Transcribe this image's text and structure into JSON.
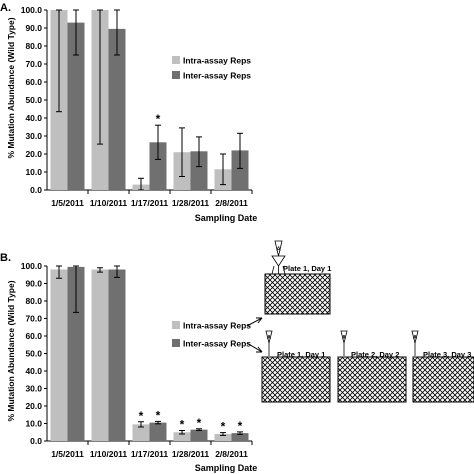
{
  "chart_data": [
    {
      "type": "bar",
      "panel": "A.",
      "categories": [
        "1/5/2011",
        "1/10/2011",
        "1/17/2011",
        "1/28/2011",
        "2/8/2011"
      ],
      "series": [
        {
          "name": "Intra-assay Reps",
          "color": "#bfbfbf",
          "values": [
            100.0,
            100.0,
            3.0,
            21.0,
            11.5
          ],
          "err_low": [
            43.5,
            25.5,
            0.0,
            7.5,
            3.0
          ],
          "err_high": [
            100.0,
            100.0,
            6.5,
            34.5,
            20.0
          ],
          "stars": [
            false,
            false,
            false,
            false,
            false
          ]
        },
        {
          "name": "Inter-assay Reps",
          "color": "#707070",
          "values": [
            93.0,
            89.5,
            26.5,
            21.5,
            22.0
          ],
          "err_low": [
            75.0,
            75.0,
            17.0,
            13.0,
            12.0
          ],
          "err_high": [
            100.0,
            100.0,
            36.0,
            29.5,
            31.5
          ],
          "stars": [
            false,
            false,
            true,
            false,
            false
          ]
        }
      ],
      "xlabel": "Sampling Date",
      "ylabel": "% Mutation Abundance  (Wild Type)",
      "ylim": [
        0,
        100
      ],
      "yticks": [
        "0.0",
        "10.0",
        "20.0",
        "30.0",
        "40.0",
        "50.0",
        "60.0",
        "70.0",
        "80.0",
        "90.0",
        "100.0"
      ],
      "star_symbol": "*",
      "grid": false,
      "legend": "middle-right"
    },
    {
      "type": "bar",
      "panel": "B.",
      "categories": [
        "1/5/2011",
        "1/10/2011",
        "1/17/2011",
        "1/28/2011",
        "2/8/2011"
      ],
      "series": [
        {
          "name": "Intra-assay Reps",
          "color": "#bfbfbf",
          "values": [
            98.0,
            98.0,
            9.5,
            5.0,
            4.0
          ],
          "err_low": [
            93.0,
            96.5,
            8.0,
            4.0,
            3.2
          ],
          "err_high": [
            100.0,
            99.0,
            11.0,
            6.0,
            4.8
          ],
          "stars": [
            false,
            false,
            true,
            true,
            true
          ]
        },
        {
          "name": "Inter-assay Reps",
          "color": "#707070",
          "values": [
            99.5,
            98.0,
            10.5,
            6.5,
            4.5
          ],
          "err_low": [
            73.5,
            93.5,
            9.8,
            6.0,
            3.8
          ],
          "err_high": [
            100.0,
            100.0,
            11.2,
            7.0,
            5.2
          ],
          "stars": [
            false,
            false,
            true,
            true,
            true
          ]
        }
      ],
      "xlabel": "Sampling Date",
      "ylabel": "% Mutation Abundance  (Wild Type)",
      "ylim": [
        0,
        100
      ],
      "yticks": [
        "0.0",
        "10.0",
        "20.0",
        "30.0",
        "40.0",
        "50.0",
        "60.0",
        "70.0",
        "80.0",
        "90.0",
        "100.0"
      ],
      "star_symbol": "*",
      "grid": false,
      "legend": "middle-center"
    }
  ],
  "diagram": {
    "plates": [
      {
        "label": "Plate 1, Day 1"
      },
      {
        "label": "Plate 1, Day 1"
      },
      {
        "label": "Plate 2, Day 2"
      },
      {
        "label": "Plate 3, Day 3"
      }
    ],
    "pipette_tip_letter": "A"
  }
}
